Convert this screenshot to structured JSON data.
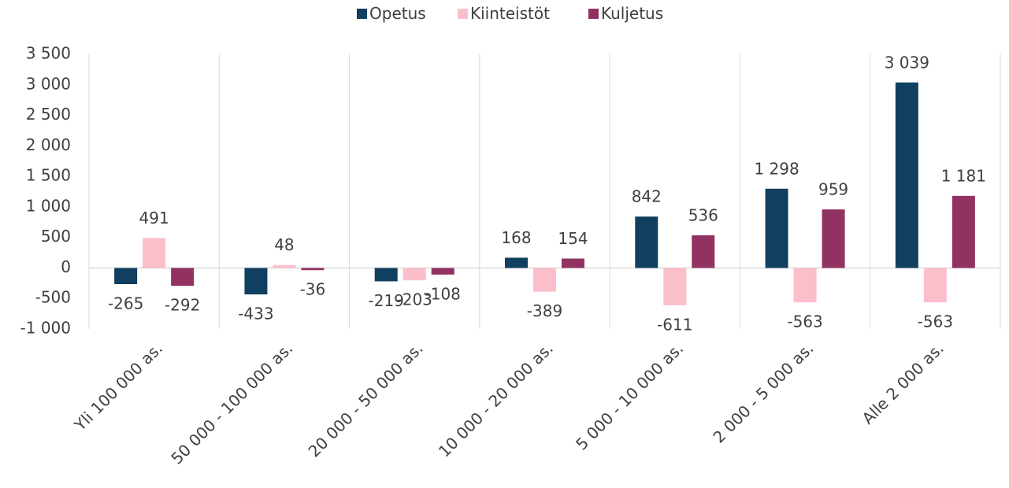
{
  "chart_data": {
    "type": "bar",
    "categories": [
      "Yli 100 000 as.",
      "50 000 - 100 000 as.",
      "20 000 - 50 000 as.",
      "10 000 - 20 000 as.",
      "5 000 - 10 000 as.",
      "2 000 - 5 000 as.",
      "Alle 2 000 as."
    ],
    "series": [
      {
        "name": "Opetus",
        "color": "#103f60",
        "values": [
          -265,
          -433,
          -219,
          168,
          842,
          1298,
          3039
        ],
        "value_labels": [
          "-265",
          "-433",
          "-219",
          "168",
          "842",
          "1 298",
          "3 039"
        ]
      },
      {
        "name": "Kiinteistöt",
        "color": "#fbbfcb",
        "values": [
          491,
          48,
          -203,
          -389,
          -611,
          -563,
          -563
        ],
        "value_labels": [
          "491",
          "48",
          "-203",
          "-389",
          "-611",
          "-563",
          "-563"
        ]
      },
      {
        "name": "Kuljetus",
        "color": "#913262",
        "values": [
          -292,
          -36,
          -108,
          154,
          536,
          959,
          1181
        ],
        "value_labels": [
          "-292",
          "-36",
          "-108",
          "154",
          "536",
          "959",
          "1 181"
        ]
      }
    ],
    "ylim": [
      -1000,
      3500
    ],
    "yticks": [
      {
        "value": -1000,
        "label": "-1 000"
      },
      -500,
      0,
      500,
      {
        "value": 1000,
        "label": "1 000"
      },
      {
        "value": 1500,
        "label": "1 500"
      },
      {
        "value": 2000,
        "label": "2 000"
      },
      {
        "value": 2500,
        "label": "2 500"
      },
      {
        "value": 3000,
        "label": "3 000"
      },
      {
        "value": 3500,
        "label": "3 500"
      }
    ],
    "grid": true,
    "legend": "top"
  }
}
